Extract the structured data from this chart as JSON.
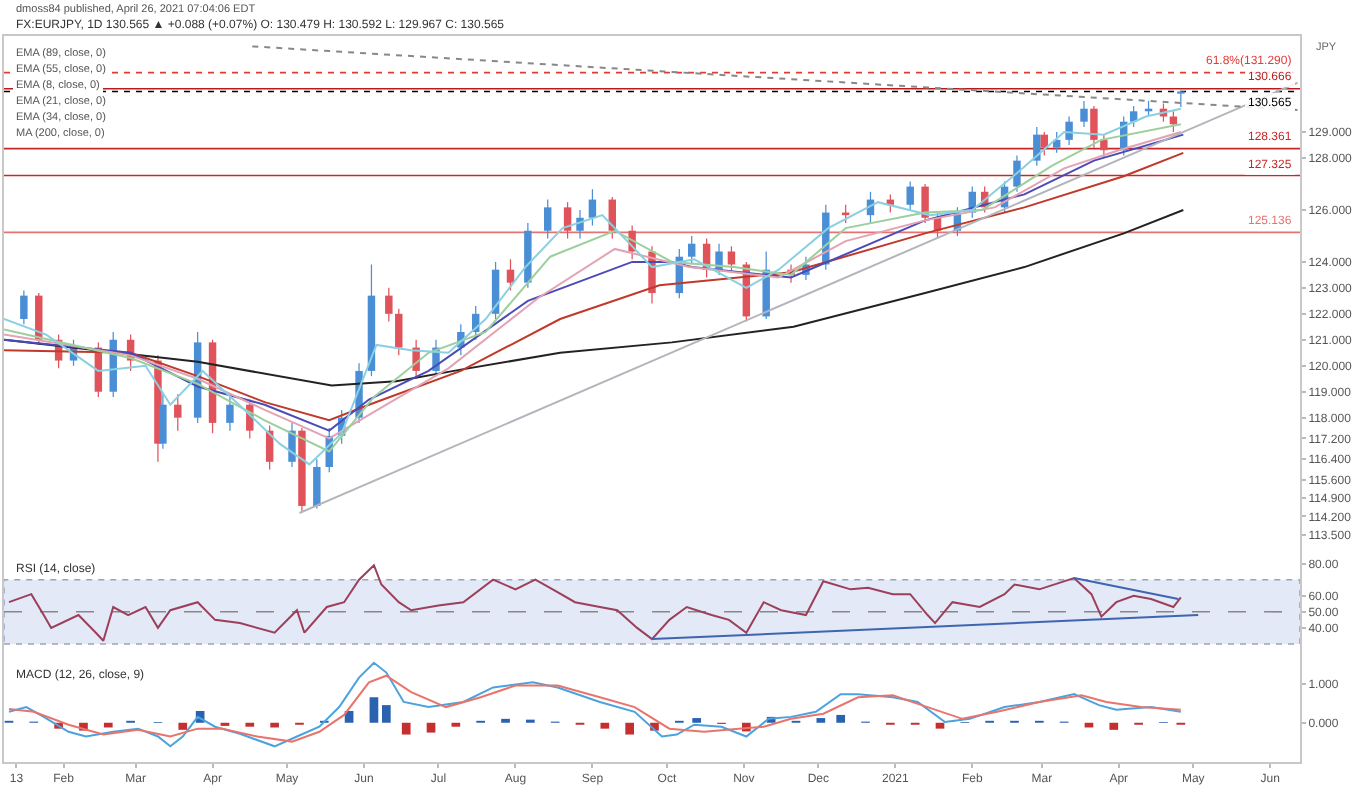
{
  "chart_data": [
    {
      "type": "candlestick",
      "title": "FX:EURJPY, 1D 130.565 ▲ +0.088 (+0.07%) O: 130.479 H: 130.592 L: 129.967 C: 130.565",
      "subtitle": "dmoss84 published, April 26, 2021 07:04:06 EDT",
      "ylabel": "JPY",
      "x": [
        "2020-01-16",
        "2020-01-22",
        "2020-01-30",
        "2020-02-05",
        "2020-02-15",
        "2020-02-21",
        "2020-02-28",
        "2020-03-10",
        "2020-03-12",
        "2020-03-18",
        "2020-03-26",
        "2020-04-01",
        "2020-04-08",
        "2020-04-16",
        "2020-04-24",
        "2020-05-03",
        "2020-05-07",
        "2020-05-13",
        "2020-05-18",
        "2020-05-23",
        "2020-05-30",
        "2020-06-04",
        "2020-06-11",
        "2020-06-15",
        "2020-06-22",
        "2020-06-30",
        "2020-07-10",
        "2020-07-16",
        "2020-07-24",
        "2020-07-30",
        "2020-08-06",
        "2020-08-14",
        "2020-08-22",
        "2020-08-27",
        "2020-09-01",
        "2020-09-09",
        "2020-09-17",
        "2020-09-25",
        "2020-10-06",
        "2020-10-11",
        "2020-10-17",
        "2020-10-22",
        "2020-10-27",
        "2020-11-02",
        "2020-11-10",
        "2020-11-20",
        "2020-11-26",
        "2020-12-04",
        "2020-12-12",
        "2020-12-22",
        "2020-12-30",
        "2021-01-07",
        "2021-01-13",
        "2021-01-18",
        "2021-01-26",
        "2021-02-01",
        "2021-02-06",
        "2021-02-14",
        "2021-02-19",
        "2021-02-27",
        "2021-03-02",
        "2021-03-07",
        "2021-03-12",
        "2021-03-18",
        "2021-03-22",
        "2021-03-26",
        "2021-04-03",
        "2021-04-07",
        "2021-04-13",
        "2021-04-19",
        "2021-04-23",
        "2021-04-26"
      ],
      "ohlc": [
        [
          121.8,
          122.9,
          121.6,
          122.7
        ],
        [
          122.7,
          122.8,
          120.8,
          121.0
        ],
        [
          121.0,
          121.2,
          119.9,
          120.2
        ],
        [
          120.2,
          121.0,
          120.0,
          120.7
        ],
        [
          120.7,
          120.9,
          118.8,
          119.0
        ],
        [
          119.0,
          121.3,
          118.8,
          121.0
        ],
        [
          121.0,
          121.2,
          119.8,
          120.2
        ],
        [
          120.2,
          120.4,
          116.3,
          117.0
        ],
        [
          117.0,
          118.9,
          116.8,
          118.5
        ],
        [
          118.5,
          118.9,
          117.5,
          118.0
        ],
        [
          118.0,
          121.3,
          117.8,
          120.9
        ],
        [
          120.9,
          121.0,
          117.4,
          117.8
        ],
        [
          117.8,
          118.9,
          117.5,
          118.5
        ],
        [
          118.5,
          118.7,
          117.2,
          117.5
        ],
        [
          117.5,
          117.7,
          116.0,
          116.3
        ],
        [
          116.3,
          117.8,
          116.1,
          117.5
        ],
        [
          117.5,
          117.6,
          114.4,
          114.6
        ],
        [
          114.6,
          116.4,
          114.5,
          116.1
        ],
        [
          116.1,
          117.6,
          115.9,
          117.3
        ],
        [
          117.3,
          118.3,
          117.0,
          118.0
        ],
        [
          118.0,
          120.1,
          117.8,
          119.8
        ],
        [
          119.8,
          123.9,
          119.6,
          122.7
        ],
        [
          122.7,
          123.0,
          121.7,
          122.0
        ],
        [
          122.0,
          122.2,
          120.4,
          120.7
        ],
        [
          120.7,
          121.0,
          119.5,
          119.8
        ],
        [
          119.8,
          121.0,
          119.6,
          120.7
        ],
        [
          120.7,
          121.6,
          120.4,
          121.3
        ],
        [
          121.3,
          122.3,
          121.0,
          122.0
        ],
        [
          122.0,
          124.0,
          121.8,
          123.7
        ],
        [
          123.7,
          124.1,
          122.9,
          123.2
        ],
        [
          123.2,
          125.5,
          123.0,
          125.2
        ],
        [
          125.2,
          126.4,
          124.9,
          126.1
        ],
        [
          126.1,
          126.3,
          124.9,
          125.2
        ],
        [
          125.2,
          126.0,
          124.9,
          125.7
        ],
        [
          125.7,
          126.8,
          125.4,
          126.4
        ],
        [
          126.4,
          126.5,
          124.9,
          125.2
        ],
        [
          125.2,
          125.4,
          124.1,
          124.4
        ],
        [
          124.4,
          124.6,
          122.4,
          122.8
        ],
        [
          122.8,
          124.5,
          122.6,
          124.2
        ],
        [
          124.2,
          125.0,
          123.9,
          124.7
        ],
        [
          124.7,
          124.9,
          123.4,
          123.7
        ],
        [
          123.7,
          124.7,
          123.5,
          124.4
        ],
        [
          124.4,
          124.6,
          123.6,
          123.9
        ],
        [
          123.9,
          124.0,
          121.7,
          121.9
        ],
        [
          121.9,
          124.4,
          121.8,
          123.7
        ],
        [
          123.7,
          123.9,
          123.2,
          123.5
        ],
        [
          123.5,
          124.2,
          123.3,
          123.9
        ],
        [
          123.9,
          126.2,
          123.7,
          125.9
        ],
        [
          125.9,
          126.2,
          125.5,
          125.8
        ],
        [
          125.8,
          126.7,
          125.5,
          126.4
        ],
        [
          126.4,
          126.6,
          125.9,
          126.2
        ],
        [
          126.2,
          127.1,
          126.0,
          126.9
        ],
        [
          126.9,
          127.0,
          125.5,
          125.7
        ],
        [
          125.7,
          125.9,
          124.9,
          125.2
        ],
        [
          125.2,
          126.1,
          125.0,
          125.9
        ],
        [
          125.9,
          126.9,
          125.7,
          126.7
        ],
        [
          126.7,
          126.9,
          125.9,
          126.1
        ],
        [
          126.1,
          127.1,
          125.9,
          126.9
        ],
        [
          126.9,
          128.1,
          126.7,
          127.9
        ],
        [
          127.9,
          129.2,
          127.7,
          128.9
        ],
        [
          128.9,
          129.0,
          128.1,
          128.4
        ],
        [
          128.4,
          129.0,
          128.2,
          128.7
        ],
        [
          128.7,
          129.6,
          128.5,
          129.4
        ],
        [
          129.4,
          130.2,
          129.2,
          129.9
        ],
        [
          129.9,
          130.0,
          128.4,
          128.7
        ],
        [
          128.7,
          128.9,
          128.0,
          128.3
        ],
        [
          128.3,
          129.6,
          128.1,
          129.4
        ],
        [
          129.4,
          130.0,
          129.2,
          129.8
        ],
        [
          129.8,
          130.2,
          129.6,
          129.9
        ],
        [
          129.9,
          130.1,
          129.4,
          129.6
        ],
        [
          129.6,
          129.8,
          129.0,
          129.3
        ],
        [
          130.479,
          130.592,
          129.967,
          130.565
        ]
      ],
      "colors": [
        "#4a8fd6",
        "#e0535a",
        "#e0535a",
        "#4a8fd6",
        "#e0535a",
        "#4a8fd6",
        "#e0535a",
        "#e0535a",
        "#4a8fd6",
        "#e0535a",
        "#4a8fd6",
        "#e0535a",
        "#4a8fd6",
        "#e0535a",
        "#e0535a",
        "#4a8fd6",
        "#e0535a",
        "#4a8fd6",
        "#4a8fd6",
        "#4a8fd6",
        "#4a8fd6",
        "#4a8fd6",
        "#e0535a",
        "#e0535a",
        "#e0535a",
        "#4a8fd6",
        "#4a8fd6",
        "#4a8fd6",
        "#4a8fd6",
        "#e0535a",
        "#4a8fd6",
        "#4a8fd6",
        "#e0535a",
        "#4a8fd6",
        "#4a8fd6",
        "#e0535a",
        "#e0535a",
        "#e0535a",
        "#4a8fd6",
        "#4a8fd6",
        "#e0535a",
        "#4a8fd6",
        "#e0535a",
        "#e0535a",
        "#4a8fd6",
        "#e0535a",
        "#4a8fd6",
        "#4a8fd6",
        "#e0535a",
        "#4a8fd6",
        "#e0535a",
        "#4a8fd6",
        "#e0535a",
        "#e0535a",
        "#4a8fd6",
        "#4a8fd6",
        "#e0535a",
        "#4a8fd6",
        "#4a8fd6",
        "#4a8fd6",
        "#e0535a",
        "#4a8fd6",
        "#4a8fd6",
        "#4a8fd6",
        "#e0535a",
        "#e0535a",
        "#4a8fd6",
        "#4a8fd6",
        "#4a8fd6",
        "#e0535a",
        "#e0535a",
        "#4a8fd6"
      ],
      "series": [
        {
          "type": "line",
          "color": "#222222",
          "x": [
            "2020-01-08",
            "2020-03-26",
            "2020-05-19",
            "2020-06-14",
            "2020-07-10",
            "2020-08-19",
            "2020-10-03",
            "2020-11-21",
            "2021-01-13",
            "2021-02-22",
            "2021-04-03",
            "2021-04-27"
          ],
          "values": [
            121.0,
            120.15,
            119.24,
            119.4,
            119.85,
            120.5,
            120.9,
            121.5,
            122.8,
            123.8,
            125.1,
            126.0
          ]
        },
        {
          "type": "line",
          "color": "#c0392b",
          "x": [
            "2020-01-08",
            "2020-02-28",
            "2020-03-26",
            "2020-04-22",
            "2020-05-18",
            "2020-06-03",
            "2020-07-10",
            "2020-08-19",
            "2020-09-28",
            "2020-11-20",
            "2021-01-13",
            "2021-02-22",
            "2021-04-03",
            "2021-04-27"
          ],
          "values": [
            120.6,
            120.5,
            119.6,
            118.6,
            117.9,
            118.5,
            119.8,
            121.8,
            123.1,
            123.6,
            125.1,
            126.1,
            127.3,
            128.2
          ]
        },
        {
          "type": "line",
          "color": "#4b4bb8",
          "x": [
            "2020-01-08",
            "2020-02-28",
            "2020-03-26",
            "2020-04-22",
            "2020-05-18",
            "2020-06-03",
            "2020-06-27",
            "2020-08-06",
            "2020-09-17",
            "2020-10-03",
            "2020-10-11",
            "2020-11-20",
            "2021-01-13",
            "2021-02-22",
            "2021-03-22",
            "2021-04-27"
          ],
          "values": [
            121.0,
            120.5,
            119.2,
            118.5,
            117.5,
            118.7,
            119.8,
            122.5,
            124.0,
            124.0,
            123.8,
            123.4,
            125.6,
            126.6,
            127.9,
            128.9
          ]
        },
        {
          "type": "line",
          "color": "#e2a3b3",
          "x": [
            "2020-01-08",
            "2020-02-28",
            "2020-03-26",
            "2020-04-22",
            "2020-05-18",
            "2020-06-10",
            "2020-07-05",
            "2020-08-10",
            "2020-09-10",
            "2020-10-10",
            "2020-11-15",
            "2020-12-12",
            "2021-01-13",
            "2021-02-10",
            "2021-03-10",
            "2021-04-01",
            "2021-04-26"
          ],
          "values": [
            121.2,
            120.4,
            119.5,
            118.3,
            117.2,
            118.5,
            119.9,
            122.6,
            124.5,
            123.8,
            123.4,
            124.8,
            125.6,
            126.1,
            127.6,
            128.3,
            129.0
          ]
        },
        {
          "type": "line",
          "color": "#9ccf9c",
          "x": [
            "2020-01-08",
            "2020-02-28",
            "2020-03-26",
            "2020-04-22",
            "2020-05-18",
            "2020-06-05",
            "2020-06-27",
            "2020-07-20",
            "2020-08-15",
            "2020-09-10",
            "2020-10-03",
            "2020-10-28",
            "2020-11-20",
            "2020-12-12",
            "2021-01-13",
            "2021-02-05",
            "2021-03-05",
            "2021-03-25",
            "2021-04-26"
          ],
          "values": [
            121.4,
            120.3,
            119.3,
            117.9,
            116.7,
            118.8,
            120.5,
            121.3,
            124.2,
            125.2,
            124.0,
            123.8,
            123.5,
            125.3,
            125.9,
            126.0,
            127.7,
            128.7,
            129.3
          ]
        },
        {
          "type": "line",
          "color": "#8ad0e0",
          "x": [
            "2020-01-08",
            "2020-01-25",
            "2020-02-15",
            "2020-03-05",
            "2020-03-15",
            "2020-03-28",
            "2020-04-15",
            "2020-04-28",
            "2020-05-10",
            "2020-05-23",
            "2020-06-06",
            "2020-06-20",
            "2020-07-05",
            "2020-07-20",
            "2020-08-05",
            "2020-08-20",
            "2020-09-05",
            "2020-09-25",
            "2020-10-12",
            "2020-11-02",
            "2020-11-15",
            "2020-12-05",
            "2020-12-25",
            "2021-01-15",
            "2021-02-01",
            "2021-02-20",
            "2021-03-10",
            "2021-03-26",
            "2021-04-12",
            "2021-04-26"
          ],
          "values": [
            121.8,
            121.2,
            119.8,
            120.0,
            118.5,
            119.8,
            118.2,
            117.0,
            116.2,
            117.4,
            120.8,
            120.6,
            120.5,
            121.8,
            123.8,
            125.3,
            125.8,
            123.8,
            124.1,
            123.0,
            123.7,
            125.3,
            126.3,
            125.8,
            126.0,
            127.5,
            129.0,
            128.9,
            129.6,
            129.9
          ]
        },
        {
          "type": "line",
          "color": "#b4b4bc",
          "x": [
            "2020-05-06",
            "2021-06-12"
          ],
          "values": [
            114.33,
            130.9
          ]
        },
        {
          "type": "line",
          "color": "#888888",
          "line_style": "dotted",
          "x": [
            "2020-04-17",
            "2021-06-12"
          ],
          "values": [
            132.3,
            129.85
          ]
        }
      ],
      "ref_lines": [
        {
          "axis": "y",
          "value": 131.29,
          "label": "61.8%(131.290)",
          "color": "#e53935",
          "line_style": "dotted"
        },
        {
          "axis": "y",
          "value": 130.666,
          "label": "130.666",
          "color": "#b71c1c"
        },
        {
          "axis": "y",
          "value": 130.565,
          "label": "130.565",
          "color": "#000000",
          "line_style": "dotted"
        },
        {
          "axis": "y",
          "value": 128.361,
          "label": "128.361",
          "color": "#c62828"
        },
        {
          "axis": "y",
          "value": 127.325,
          "label": "127.325",
          "color": "#c62828"
        },
        {
          "axis": "y",
          "value": 125.136,
          "label": "125.136",
          "color": "#e57373"
        }
      ],
      "annotations": [
        "EMA (89, close, 0)",
        "EMA (55, close, 0)",
        "EMA (8, close, 0)",
        "EMA (21, close, 0)",
        "EMA (34, close, 0)",
        "MA (200, close, 0)"
      ],
      "xlim": [
        "2020-01-08",
        "2021-06-13"
      ],
      "ylim": [
        112.75,
        132.7
      ],
      "yticks": [
        {
          "value": 113.5,
          "label": "113.500"
        },
        {
          "value": 114.2,
          "label": "114.200"
        },
        {
          "value": 114.9,
          "label": "114.900"
        },
        {
          "value": 115.6,
          "label": "115.600"
        },
        {
          "value": 116.4,
          "label": "116.400"
        },
        {
          "value": 117.2,
          "label": "117.200"
        },
        {
          "value": 118,
          "label": "118.000"
        },
        {
          "value": 119,
          "label": "119.000"
        },
        {
          "value": 120,
          "label": "120.000"
        },
        {
          "value": 121,
          "label": "121.000"
        },
        {
          "value": 122,
          "label": "122.000"
        },
        {
          "value": 123,
          "label": "123.000"
        },
        {
          "value": 124,
          "label": "124.000"
        },
        {
          "value": 126,
          "label": "126.000"
        },
        {
          "value": 128,
          "label": "128.000"
        },
        {
          "value": 129,
          "label": "129.000"
        }
      ],
      "tick_labels": "y"
    },
    {
      "type": "line",
      "title": "RSI (14, close)",
      "series": [
        {
          "color": "#9c3f5a",
          "x": [
            "2020-01-10",
            "2020-01-19",
            "2020-01-24",
            "2020-01-27",
            "2020-02-07",
            "2020-02-14",
            "2020-02-17",
            "2020-02-21",
            "2020-02-27",
            "2020-03-05",
            "2020-03-10",
            "2020-03-15",
            "2020-03-26",
            "2020-04-02",
            "2020-04-12",
            "2020-04-26",
            "2020-05-05",
            "2020-05-08",
            "2020-05-17",
            "2020-05-24",
            "2020-05-30",
            "2020-06-05",
            "2020-06-08",
            "2020-06-15",
            "2020-06-20",
            "2020-07-01",
            "2020-07-11",
            "2020-07-23",
            "2020-08-01",
            "2020-08-09",
            "2020-08-16",
            "2020-08-25",
            "2020-09-04",
            "2020-09-11",
            "2020-09-19",
            "2020-09-25",
            "2020-10-02",
            "2020-10-09",
            "2020-10-19",
            "2020-10-26",
            "2020-11-02",
            "2020-11-09",
            "2020-11-16",
            "2020-11-26",
            "2020-12-03",
            "2020-12-14",
            "2020-12-21",
            "2020-12-31",
            "2021-01-07",
            "2021-01-14",
            "2021-01-17",
            "2021-01-24",
            "2021-02-04",
            "2021-02-14",
            "2021-02-18",
            "2021-02-28",
            "2021-03-14",
            "2021-03-21",
            "2021-03-25",
            "2021-03-31",
            "2021-04-07",
            "2021-04-14",
            "2021-04-23",
            "2021-04-26"
          ],
          "values": [
            56,
            61,
            48,
            40,
            48,
            37,
            32,
            53,
            48,
            53,
            40,
            51,
            56,
            45,
            43,
            37,
            51,
            37,
            53,
            56,
            70,
            79,
            67,
            56,
            51,
            54,
            56,
            70,
            64,
            70,
            64,
            56,
            53,
            51,
            40,
            33,
            45,
            53,
            48,
            45,
            37,
            56,
            51,
            48,
            69,
            64,
            65,
            61,
            61,
            48,
            43,
            56,
            53,
            61,
            67,
            64,
            71,
            61,
            47,
            56,
            60,
            58,
            53,
            59
          ]
        },
        {
          "color": "#3f65b0",
          "x": [
            "2021-03-14",
            "2021-04-25"
          ],
          "values": [
            71,
            58
          ]
        },
        {
          "color": "#3f65b0",
          "x": [
            "2020-09-25",
            "2021-05-03"
          ],
          "values": [
            33,
            48
          ]
        }
      ],
      "bands": [
        {
          "axis": "y",
          "from": 30,
          "to": 70,
          "color": "#e3e9f6"
        }
      ],
      "ref_lines": [
        {
          "axis": "y",
          "value": 50,
          "color": "#888888",
          "line_style": "dashed"
        }
      ],
      "xlim": [
        "2020-01-08",
        "2021-06-13"
      ],
      "ylim": [
        20,
        86
      ],
      "yticks": [
        {
          "value": 80,
          "label": "80.00"
        },
        {
          "value": 60,
          "label": "60.00"
        },
        {
          "value": 50,
          "label": "50.00"
        },
        {
          "value": 40,
          "label": "40.00"
        }
      ],
      "tick_labels": "y"
    },
    {
      "type": "line",
      "title": "MACD (12, 26, close, 9)",
      "series": [
        {
          "type": "bar",
          "x": [
            "2020-01-10",
            "2020-01-20",
            "2020-01-30",
            "2020-02-09",
            "2020-02-19",
            "2020-02-28",
            "2020-03-10",
            "2020-03-20",
            "2020-03-27",
            "2020-04-06",
            "2020-04-16",
            "2020-04-26",
            "2020-05-06",
            "2020-05-16",
            "2020-05-26",
            "2020-06-05",
            "2020-06-10",
            "2020-06-18",
            "2020-06-28",
            "2020-07-08",
            "2020-07-18",
            "2020-07-28",
            "2020-08-07",
            "2020-08-17",
            "2020-08-27",
            "2020-09-06",
            "2020-09-16",
            "2020-09-26",
            "2020-10-06",
            "2020-10-13",
            "2020-10-23",
            "2020-11-02",
            "2020-11-12",
            "2020-11-22",
            "2020-12-02",
            "2020-12-10",
            "2020-12-20",
            "2020-12-30",
            "2021-01-09",
            "2021-01-19",
            "2021-01-29",
            "2021-02-08",
            "2021-02-18",
            "2021-02-28",
            "2021-03-10",
            "2021-03-20",
            "2021-03-30",
            "2021-04-09",
            "2021-04-19",
            "2021-04-26"
          ],
          "values": [
            0.05,
            0.03,
            -0.15,
            -0.2,
            -0.12,
            0.05,
            0.02,
            -0.18,
            0.3,
            -0.08,
            -0.1,
            -0.12,
            -0.05,
            0.05,
            0.3,
            0.65,
            0.45,
            -0.3,
            -0.25,
            -0.1,
            0.05,
            0.1,
            0.08,
            0.03,
            -0.05,
            -0.15,
            -0.3,
            -0.2,
            0.05,
            0.12,
            -0.03,
            -0.22,
            0.15,
            0.05,
            0.12,
            0.2,
            0.03,
            -0.05,
            -0.05,
            -0.15,
            0.02,
            0.05,
            0.05,
            0.05,
            0.03,
            -0.12,
            -0.18,
            -0.05,
            0.02,
            -0.05
          ],
          "colors": [
            "#2a62b0",
            "#2a62b0",
            "#c62f2f",
            "#c62f2f",
            "#c62f2f",
            "#2a62b0",
            "#2a62b0",
            "#c62f2f",
            "#2a62b0",
            "#c62f2f",
            "#c62f2f",
            "#c62f2f",
            "#c62f2f",
            "#2a62b0",
            "#2a62b0",
            "#2a62b0",
            "#2a62b0",
            "#c62f2f",
            "#c62f2f",
            "#c62f2f",
            "#2a62b0",
            "#2a62b0",
            "#2a62b0",
            "#2a62b0",
            "#c62f2f",
            "#c62f2f",
            "#c62f2f",
            "#c62f2f",
            "#2a62b0",
            "#2a62b0",
            "#c62f2f",
            "#c62f2f",
            "#2a62b0",
            "#2a62b0",
            "#2a62b0",
            "#2a62b0",
            "#2a62b0",
            "#c62f2f",
            "#c62f2f",
            "#c62f2f",
            "#2a62b0",
            "#2a62b0",
            "#2a62b0",
            "#2a62b0",
            "#2a62b0",
            "#c62f2f",
            "#c62f2f",
            "#c62f2f",
            "#2a62b0",
            "#c62f2f"
          ]
        },
        {
          "color": "#4aa3df",
          "x": [
            "2020-01-10",
            "2020-01-17",
            "2020-01-24",
            "2020-02-03",
            "2020-02-10",
            "2020-02-21",
            "2020-03-02",
            "2020-03-10",
            "2020-03-15",
            "2020-03-20",
            "2020-03-26",
            "2020-04-02",
            "2020-04-12",
            "2020-04-26",
            "2020-05-05",
            "2020-05-14",
            "2020-05-22",
            "2020-05-30",
            "2020-06-05",
            "2020-06-10",
            "2020-06-17",
            "2020-06-27",
            "2020-07-11",
            "2020-07-23",
            "2020-08-08",
            "2020-08-18",
            "2020-09-04",
            "2020-09-18",
            "2020-09-29",
            "2020-10-05",
            "2020-10-12",
            "2020-10-23",
            "2020-11-02",
            "2020-11-11",
            "2020-11-20",
            "2020-11-30",
            "2020-12-10",
            "2020-12-17",
            "2020-12-31",
            "2021-01-10",
            "2021-01-21",
            "2021-01-31",
            "2021-02-14",
            "2021-02-28",
            "2021-03-14",
            "2021-03-24",
            "2021-03-31",
            "2021-04-14",
            "2021-04-26"
          ],
          "values": [
            0.28,
            0.4,
            0.15,
            -0.23,
            -0.35,
            -0.23,
            -0.15,
            -0.35,
            -0.6,
            -0.35,
            0.15,
            -0.1,
            -0.28,
            -0.6,
            -0.35,
            -0.1,
            0.4,
            1.15,
            1.53,
            1.28,
            0.53,
            0.4,
            0.53,
            0.9,
            1.03,
            0.9,
            0.53,
            0.28,
            -0.35,
            -0.3,
            -0.05,
            -0.1,
            -0.35,
            0.1,
            0.15,
            0.28,
            0.73,
            0.73,
            0.65,
            0.53,
            0.02,
            0.1,
            0.4,
            0.53,
            0.73,
            0.45,
            0.33,
            0.4,
            0.28
          ]
        },
        {
          "color": "#e8746c",
          "x": [
            "2020-01-10",
            "2020-01-20",
            "2020-02-03",
            "2020-02-17",
            "2020-03-02",
            "2020-03-15",
            "2020-03-26",
            "2020-04-05",
            "2020-04-19",
            "2020-05-03",
            "2020-05-14",
            "2020-05-24",
            "2020-06-03",
            "2020-06-10",
            "2020-06-20",
            "2020-07-04",
            "2020-07-18",
            "2020-08-01",
            "2020-08-18",
            "2020-09-04",
            "2020-09-18",
            "2020-10-02",
            "2020-10-16",
            "2020-10-30",
            "2020-11-09",
            "2020-11-20",
            "2020-12-03",
            "2020-12-17",
            "2020-12-31",
            "2021-01-14",
            "2021-01-28",
            "2021-02-11",
            "2021-02-28",
            "2021-03-17",
            "2021-03-27",
            "2021-04-10",
            "2021-04-26"
          ],
          "values": [
            0.35,
            0.28,
            -0.05,
            -0.3,
            -0.18,
            -0.35,
            -0.15,
            -0.15,
            -0.35,
            -0.48,
            -0.23,
            0.2,
            1.03,
            1.2,
            0.78,
            0.4,
            0.65,
            0.95,
            0.95,
            0.65,
            0.4,
            -0.15,
            -0.23,
            -0.15,
            -0.1,
            0.1,
            0.23,
            0.65,
            0.7,
            0.4,
            0.1,
            0.28,
            0.53,
            0.7,
            0.53,
            0.4,
            0.33
          ]
        }
      ],
      "xlim": [
        "2020-01-08",
        "2021-06-13"
      ],
      "xticks": [
        {
          "value": "2020-01-13",
          "label": "13"
        },
        {
          "value": "2020-02-01",
          "label": "Feb"
        },
        {
          "value": "2020-03-01",
          "label": "Mar"
        },
        {
          "value": "2020-04-01",
          "label": "Apr"
        },
        {
          "value": "2020-05-01",
          "label": "May"
        },
        {
          "value": "2020-06-01",
          "label": "Jun"
        },
        {
          "value": "2020-07-01",
          "label": "Jul"
        },
        {
          "value": "2020-08-01",
          "label": "Aug"
        },
        {
          "value": "2020-09-01",
          "label": "Sep"
        },
        {
          "value": "2020-10-01",
          "label": "Oct"
        },
        {
          "value": "2020-11-01",
          "label": "Nov"
        },
        {
          "value": "2020-12-01",
          "label": "Dec"
        },
        {
          "value": "2021-01-01",
          "label": "2021"
        },
        {
          "value": "2021-02-01",
          "label": "Feb"
        },
        {
          "value": "2021-03-01",
          "label": "Mar"
        },
        {
          "value": "2021-04-01",
          "label": "Apr"
        },
        {
          "value": "2021-05-01",
          "label": "May"
        },
        {
          "value": "2021-06-01",
          "label": "Jun"
        }
      ],
      "ylim": [
        -1.0,
        1.6
      ],
      "yticks": [
        {
          "value": 1,
          "label": "1.000"
        },
        {
          "value": 0,
          "label": "0.000"
        }
      ]
    }
  ]
}
